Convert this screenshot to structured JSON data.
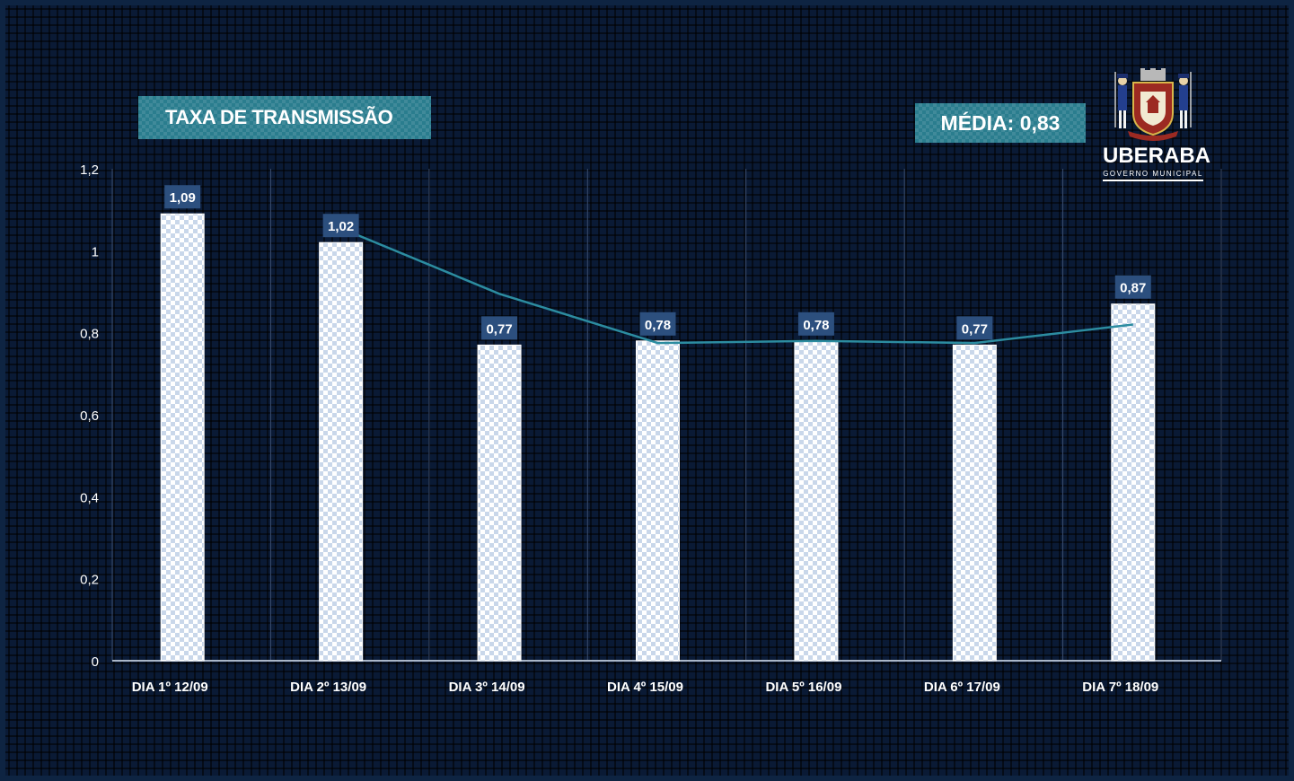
{
  "header": {
    "title": "TAXA DE TRANSMISSÃO",
    "media_label": "MÉDIA: 0,83"
  },
  "logo": {
    "name": "UBERABA",
    "subtitle": "GOVERNO MUNICIPAL"
  },
  "colors": {
    "background": "#0a1a35",
    "bar_fill": "#ffffff",
    "bar_check": "#c9d7ea",
    "label_bg": "#2c4f7e",
    "trend_line": "#2c8ca0",
    "title_bg": "#2a7d8e"
  },
  "chart_data": {
    "type": "bar",
    "title": "TAXA DE TRANSMISSÃO",
    "categories": [
      "DIA 1º 12/09",
      "DIA 2º 13/09",
      "DIA 3º 14/09",
      "DIA 4º 15/09",
      "DIA 5º 16/09",
      "DIA 6º 17/09",
      "DIA 7º 18/09"
    ],
    "values": [
      1.09,
      1.02,
      0.77,
      0.78,
      0.78,
      0.77,
      0.87
    ],
    "value_labels": [
      "1,09",
      "1,02",
      "0,77",
      "0,78",
      "0,78",
      "0,77",
      "0,87"
    ],
    "trend": {
      "type": "moving_average",
      "x_start_index": 1,
      "values": [
        1.055,
        0.895,
        0.775,
        0.78,
        0.775,
        0.82
      ]
    },
    "ylim": [
      0,
      1.2
    ],
    "yticks": [
      0,
      0.2,
      0.4,
      0.6,
      0.8,
      1,
      1.2
    ],
    "ytick_labels": [
      "0",
      "0,2",
      "0,4",
      "0,6",
      "0,8",
      "1",
      "1,2"
    ],
    "grid": "vertical",
    "legend": "none",
    "xlabel": "",
    "ylabel": ""
  }
}
